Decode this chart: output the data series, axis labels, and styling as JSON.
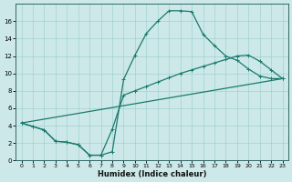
{
  "xlabel": "Humidex (Indice chaleur)",
  "bg_color": "#cce8e8",
  "line_color": "#1a7a6e",
  "xlim": [
    -0.5,
    23.5
  ],
  "ylim": [
    0,
    18
  ],
  "xticks": [
    0,
    1,
    2,
    3,
    4,
    5,
    6,
    7,
    8,
    9,
    10,
    11,
    12,
    13,
    14,
    15,
    16,
    17,
    18,
    19,
    20,
    21,
    22,
    23
  ],
  "yticks": [
    0,
    2,
    4,
    6,
    8,
    10,
    12,
    14,
    16
  ],
  "curve1_x": [
    0,
    1,
    2,
    3,
    4,
    5,
    6,
    7,
    8,
    9,
    10,
    11,
    12,
    13,
    14,
    15,
    16,
    17,
    18,
    19,
    20,
    21,
    22,
    23
  ],
  "curve1_y": [
    4.3,
    3.9,
    3.5,
    2.2,
    2.1,
    1.8,
    0.6,
    0.6,
    1.0,
    9.3,
    12.1,
    14.6,
    16.0,
    17.2,
    17.2,
    17.1,
    14.5,
    13.2,
    12.0,
    11.5,
    10.5,
    9.7,
    9.4,
    9.4
  ],
  "curve2_x": [
    0,
    1,
    2,
    3,
    4,
    5,
    6,
    7,
    8,
    9,
    10,
    11,
    12,
    13,
    14,
    15,
    16,
    17,
    18,
    19,
    20,
    21,
    22,
    23
  ],
  "curve2_y": [
    4.3,
    3.9,
    3.5,
    2.2,
    2.1,
    1.8,
    0.6,
    0.6,
    3.6,
    7.5,
    8.0,
    8.5,
    9.0,
    9.5,
    10.0,
    10.4,
    10.8,
    11.2,
    11.6,
    12.0,
    12.1,
    11.4,
    10.4,
    9.4
  ],
  "curve3_x": [
    0,
    23
  ],
  "curve3_y": [
    4.3,
    9.4
  ],
  "marker_size": 3.5,
  "linewidth": 0.9
}
